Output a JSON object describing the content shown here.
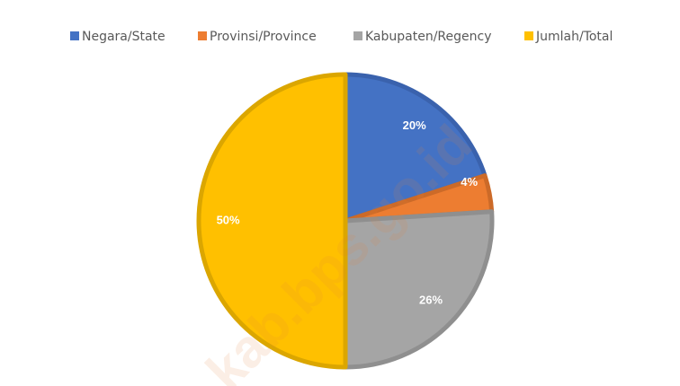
{
  "chart_data": {
    "type": "pie",
    "categories": [
      "Negara/State",
      "Provinsi/Province",
      "Kabupaten/Regency",
      "Jumlah/Total"
    ],
    "values": [
      20,
      4,
      26,
      50
    ],
    "value_labels": [
      "20%",
      "4%",
      "26%",
      "50%"
    ],
    "colors": [
      "#4472c4",
      "#ed7d31",
      "#a5a5a5",
      "#ffc000"
    ],
    "border_colors": [
      "#3a62ad",
      "#cc6a28",
      "#8f8f8f",
      "#dba600"
    ],
    "legend": "top",
    "watermark": "kab.bps.go.id"
  }
}
